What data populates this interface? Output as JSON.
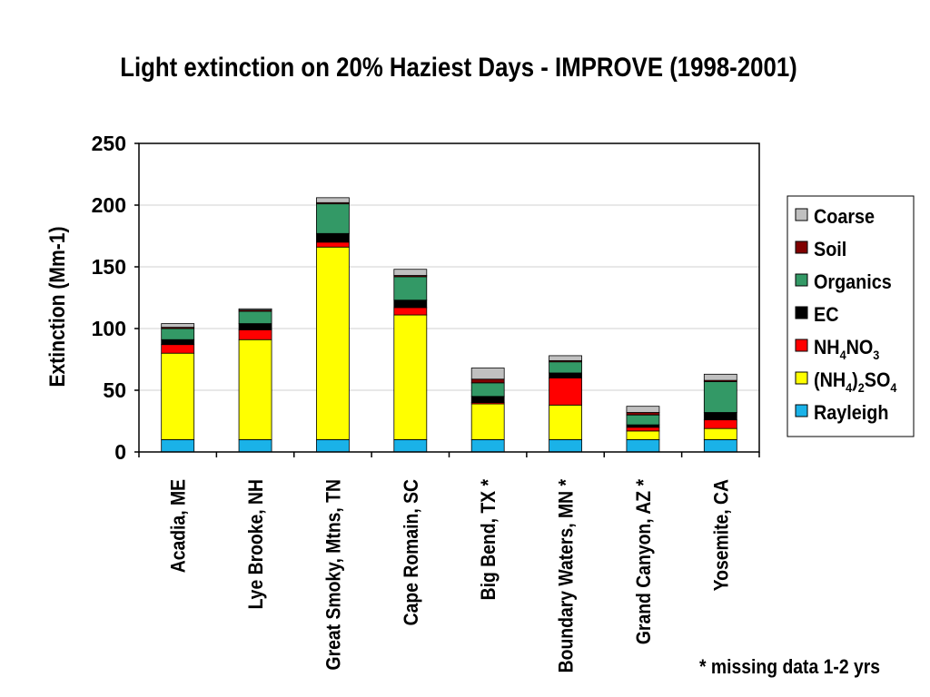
{
  "chart_data": {
    "type": "bar",
    "stacked": true,
    "title": "Light extinction on 20% Haziest Days - IMPROVE (1998-2001)",
    "xlabel": "",
    "ylabel": "Extinction (Mm-1)",
    "ylim": [
      0,
      250
    ],
    "yticks": [
      "0",
      "50",
      "100",
      "150",
      "200",
      "250"
    ],
    "grid": true,
    "legend_position": "right",
    "categories": [
      "Acadia, ME",
      "Lye Brooke, NH",
      "Great Smoky, Mtns, TN",
      "Cape Romain, SC",
      "Big Bend, TX *",
      "Boundary Waters, MN *",
      "Grand Canyon, AZ *",
      "Yosemite, CA"
    ],
    "series": [
      {
        "name": "Rayleigh",
        "color": "#1ab2e8",
        "values": [
          10,
          10,
          10,
          10,
          10,
          10,
          10,
          10
        ]
      },
      {
        "name": "(NH4)2SO4",
        "color": "#ffff00",
        "values": [
          70,
          81,
          156,
          101,
          29,
          28,
          7,
          9
        ]
      },
      {
        "name": "NH4NO3",
        "color": "#ff0000",
        "values": [
          7,
          8,
          4,
          6,
          1,
          22,
          3,
          7
        ]
      },
      {
        "name": "EC",
        "color": "#000000",
        "values": [
          4,
          5,
          7,
          6,
          5,
          4,
          2,
          6
        ]
      },
      {
        "name": "Organics",
        "color": "#339966",
        "values": [
          9,
          10,
          24,
          19,
          11,
          9,
          8,
          25
        ]
      },
      {
        "name": "Soil",
        "color": "#800000",
        "values": [
          1,
          1,
          1,
          1,
          3,
          1,
          2,
          1
        ]
      },
      {
        "name": "Coarse",
        "color": "#c0c0c0",
        "values": [
          3,
          1,
          4,
          5,
          9,
          4,
          5,
          5
        ]
      }
    ],
    "legend_order": [
      "Coarse",
      "Soil",
      "Organics",
      "EC",
      "NH4NO3",
      "(NH4)2SO4",
      "Rayleigh"
    ]
  },
  "legend_labels": {
    "Coarse": {
      "base": "Coarse"
    },
    "Soil": {
      "base": "Soil"
    },
    "Organics": {
      "base": "Organics"
    },
    "EC": {
      "base": "EC"
    },
    "NH4NO3": {
      "base": "NH",
      "sub1": "4",
      "mid": "NO",
      "sub2": "3"
    },
    "(NH4)2SO4": {
      "base": "(NH",
      "sub1": "4",
      "mid": ")",
      "sub2": "2",
      "mid2": "SO",
      "sub3": "4"
    },
    "Rayleigh": {
      "base": "Rayleigh"
    }
  },
  "footnote": "* missing data 1-2 yrs"
}
